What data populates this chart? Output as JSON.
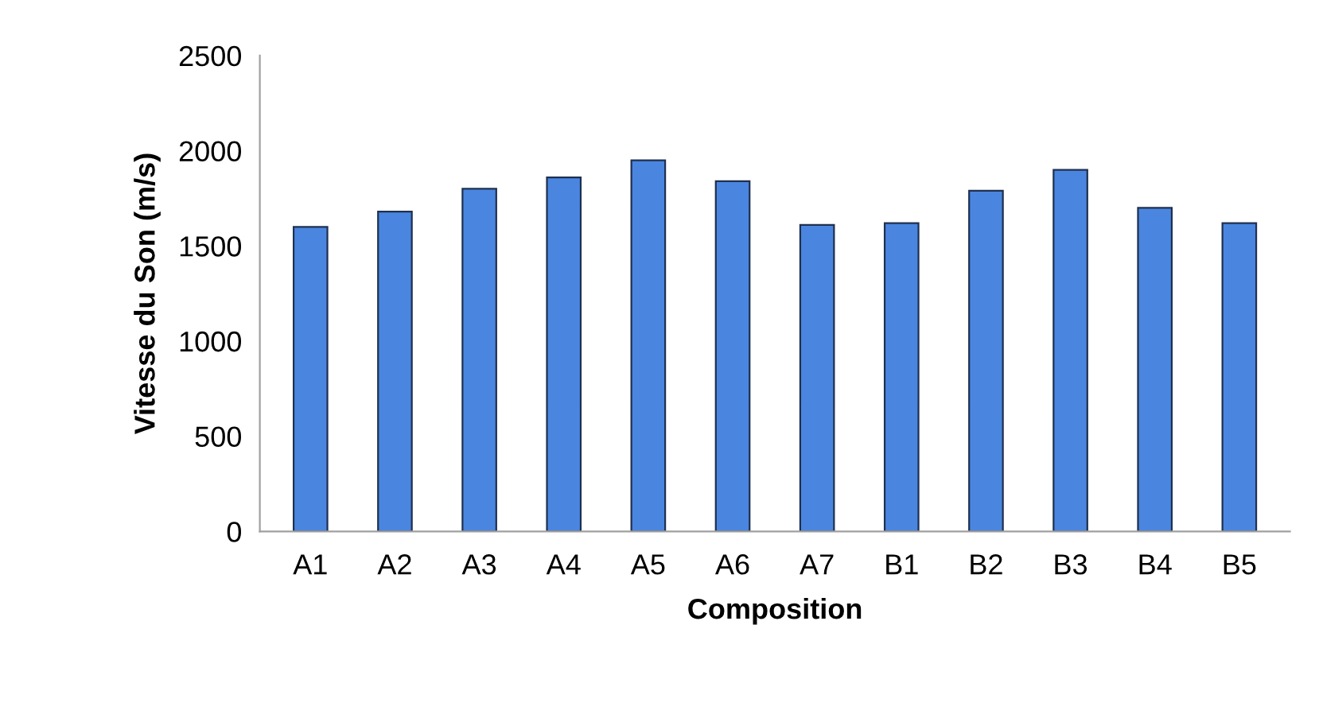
{
  "chart_data": {
    "type": "bar",
    "xlabel": "Composition",
    "ylabel": "Vitesse du Son (m/s)",
    "categories": [
      "A1",
      "A2",
      "A3",
      "A4",
      "A5",
      "A6",
      "A7",
      "B1",
      "B2",
      "B3",
      "B4",
      "B5"
    ],
    "values": [
      1600,
      1680,
      1800,
      1860,
      1950,
      1840,
      1610,
      1620,
      1790,
      1900,
      1700,
      1620
    ],
    "color": "#4a86e0",
    "ylim": [
      0,
      2500
    ],
    "yticks": [
      0,
      500,
      1000,
      1500,
      2000,
      2500
    ],
    "grid": false,
    "legend": false
  }
}
